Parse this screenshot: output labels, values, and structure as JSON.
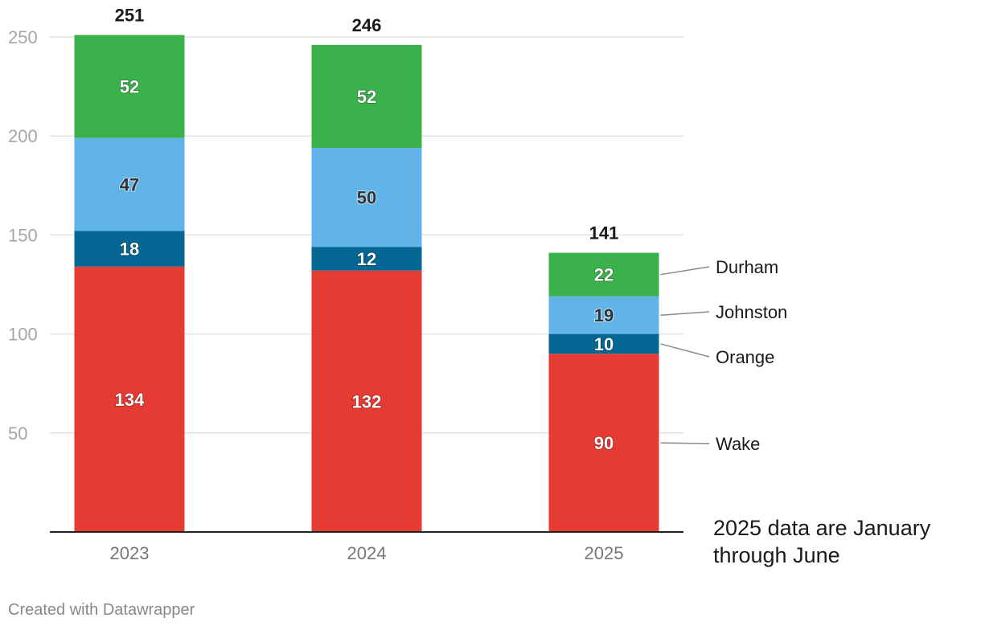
{
  "chart_data": {
    "type": "bar",
    "stacked": true,
    "categories": [
      "2023",
      "2024",
      "2025"
    ],
    "series": [
      {
        "name": "Wake",
        "values": [
          134,
          132,
          90
        ],
        "color": "#e63b32"
      },
      {
        "name": "Orange",
        "values": [
          18,
          12,
          10
        ],
        "color": "#046693"
      },
      {
        "name": "Johnston",
        "values": [
          47,
          50,
          19
        ],
        "color": "#60b4e9"
      },
      {
        "name": "Durham",
        "values": [
          52,
          52,
          22
        ],
        "color": "#3bb14c"
      }
    ],
    "totals": [
      251,
      246,
      141
    ],
    "y_ticks": [
      50,
      100,
      150,
      200,
      250
    ],
    "ylim": [
      0,
      250
    ],
    "grid": true,
    "legend_position": "right, inline labels on last bar",
    "title": "",
    "xlabel": "",
    "ylabel": ""
  },
  "note": "2025 data are January through June",
  "credit": "Created with Datawrapper"
}
